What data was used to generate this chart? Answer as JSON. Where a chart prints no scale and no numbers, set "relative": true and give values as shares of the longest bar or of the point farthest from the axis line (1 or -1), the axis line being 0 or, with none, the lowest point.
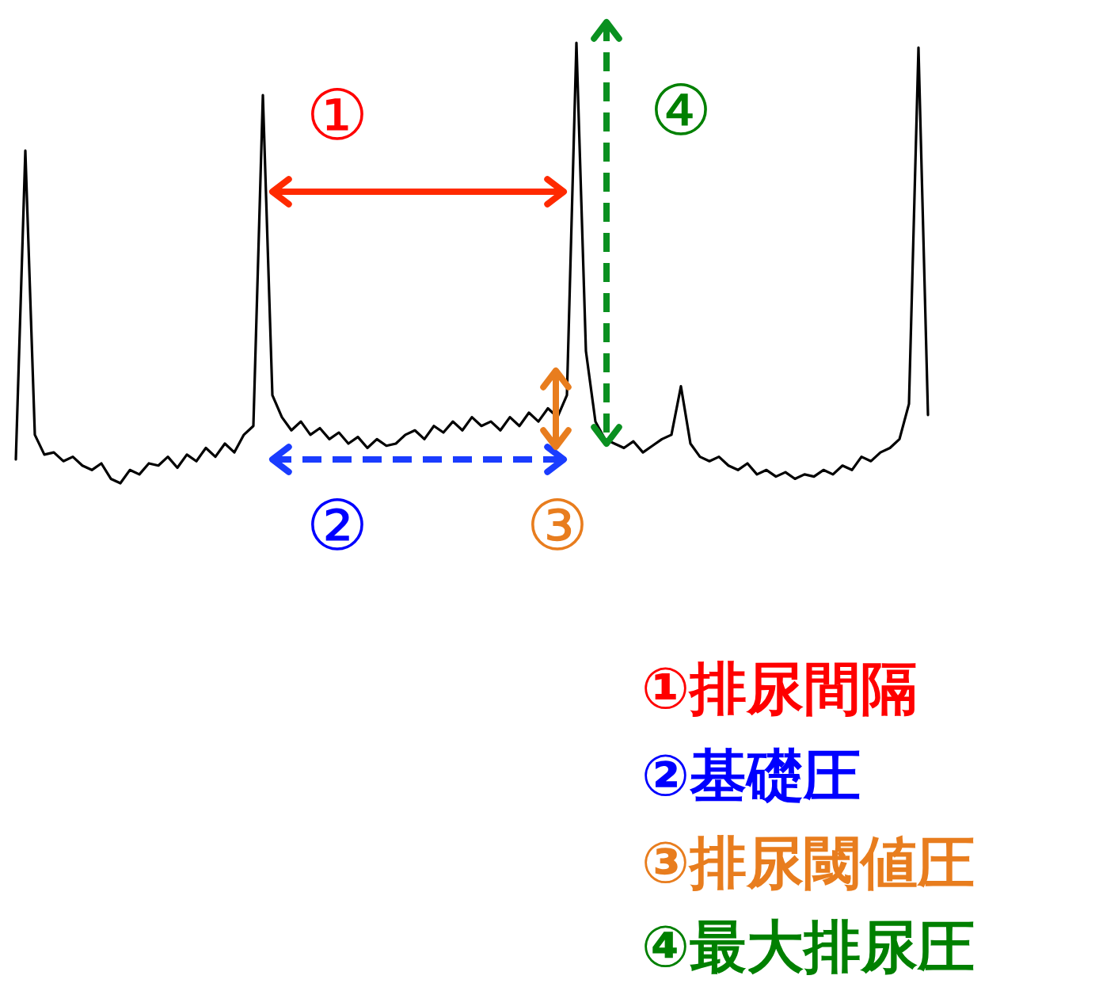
{
  "chart_data": {
    "type": "line",
    "relative": true,
    "color": "#000000",
    "categories": [
      null,
      null,
      null,
      null,
      null,
      null,
      null,
      null,
      null,
      null,
      null,
      null,
      null,
      null,
      null,
      null,
      null,
      null,
      null,
      null,
      null,
      null,
      null,
      null,
      null,
      null,
      null,
      null,
      null,
      null,
      null,
      null,
      null,
      null,
      null,
      null,
      null,
      null,
      null,
      null,
      null,
      null,
      null,
      null,
      null,
      null,
      null,
      null,
      null,
      null,
      null,
      null,
      null,
      null,
      null,
      null,
      null,
      null,
      null,
      null,
      null,
      null,
      null,
      null,
      null,
      null,
      null,
      null,
      null,
      null,
      null,
      null,
      null,
      null,
      null,
      null,
      null,
      null,
      null,
      null,
      null,
      null,
      null,
      null,
      null,
      null,
      null,
      null,
      null,
      null,
      null,
      null,
      null,
      null,
      null,
      null,
      null
    ],
    "values": [
      0.054,
      0.755,
      0.11,
      0.065,
      0.07,
      0.05,
      0.06,
      0.04,
      0.03,
      0.045,
      0.01,
      0,
      0.03,
      0.02,
      0.045,
      0.04,
      0.06,
      0.035,
      0.065,
      0.05,
      0.08,
      0.06,
      0.09,
      0.07,
      0.11,
      0.13,
      0.881,
      0.2,
      0.15,
      0.12,
      0.14,
      0.11,
      0.125,
      0.1,
      0.115,
      0.09,
      0.105,
      0.08,
      0.1,
      0.085,
      0.09,
      0.11,
      0.12,
      0.1,
      0.13,
      0.115,
      0.14,
      0.12,
      0.15,
      0.13,
      0.14,
      0.12,
      0.15,
      0.13,
      0.16,
      0.14,
      0.17,
      0.15,
      0.2,
      1,
      0.3,
      0.14,
      0.1,
      0.09,
      0.08,
      0.095,
      0.07,
      0.085,
      0.1,
      0.11,
      0.22,
      0.09,
      0.06,
      0.05,
      0.06,
      0.04,
      0.03,
      0.045,
      0.02,
      0.03,
      0.015,
      0.025,
      0.01,
      0.02,
      0.015,
      0.03,
      0.02,
      0.04,
      0.03,
      0.06,
      0.05,
      0.07,
      0.08,
      0.1,
      0.18,
      0.989,
      0.155
    ],
    "annotations": [
      "①",
      "②",
      "③",
      "④",
      "①排尿間隔",
      "②基礎圧",
      "③排尿閾値圧",
      "④最大排尿圧"
    ]
  }
}
